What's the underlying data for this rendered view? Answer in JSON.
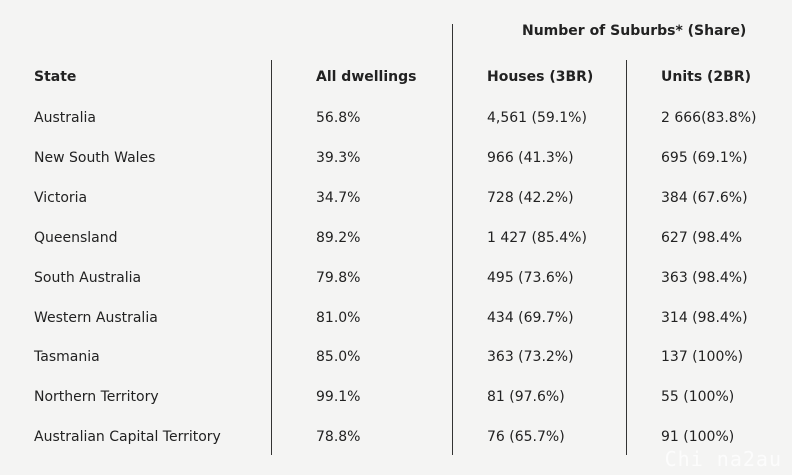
{
  "table": {
    "group_header": "Number of Suburbs* (Share)",
    "headers": [
      "State",
      "All dwellings",
      "Houses (3BR)",
      "Units (2BR)"
    ],
    "rows": [
      [
        "Australia",
        "56.8%",
        "4,561 (59.1%)",
        "2 666(83.8%)"
      ],
      [
        "New South Wales",
        "39.3%",
        "966 (41.3%)",
        "695 (69.1%)"
      ],
      [
        "Victoria",
        "34.7%",
        "728 (42.2%)",
        "384 (67.6%)"
      ],
      [
        "Queensland",
        "89.2%",
        "1 427 (85.4%)",
        "627 (98.4%"
      ],
      [
        "South Australia",
        "79.8%",
        "495 (73.6%)",
        "363 (98.4%)"
      ],
      [
        "Western Australia",
        "81.0%",
        "434 (69.7%)",
        "314 (98.4%)"
      ],
      [
        "Tasmania",
        "85.0%",
        "363 (73.2%)",
        "137 (100%)"
      ],
      [
        "Northern Territory",
        "99.1%",
        "81 (97.6%)",
        "55 (100%)"
      ],
      [
        "Australian Capital Territory",
        "78.8%",
        "76 (65.7%)",
        "91 (100%)"
      ]
    ]
  },
  "watermark": "Chi na2au"
}
